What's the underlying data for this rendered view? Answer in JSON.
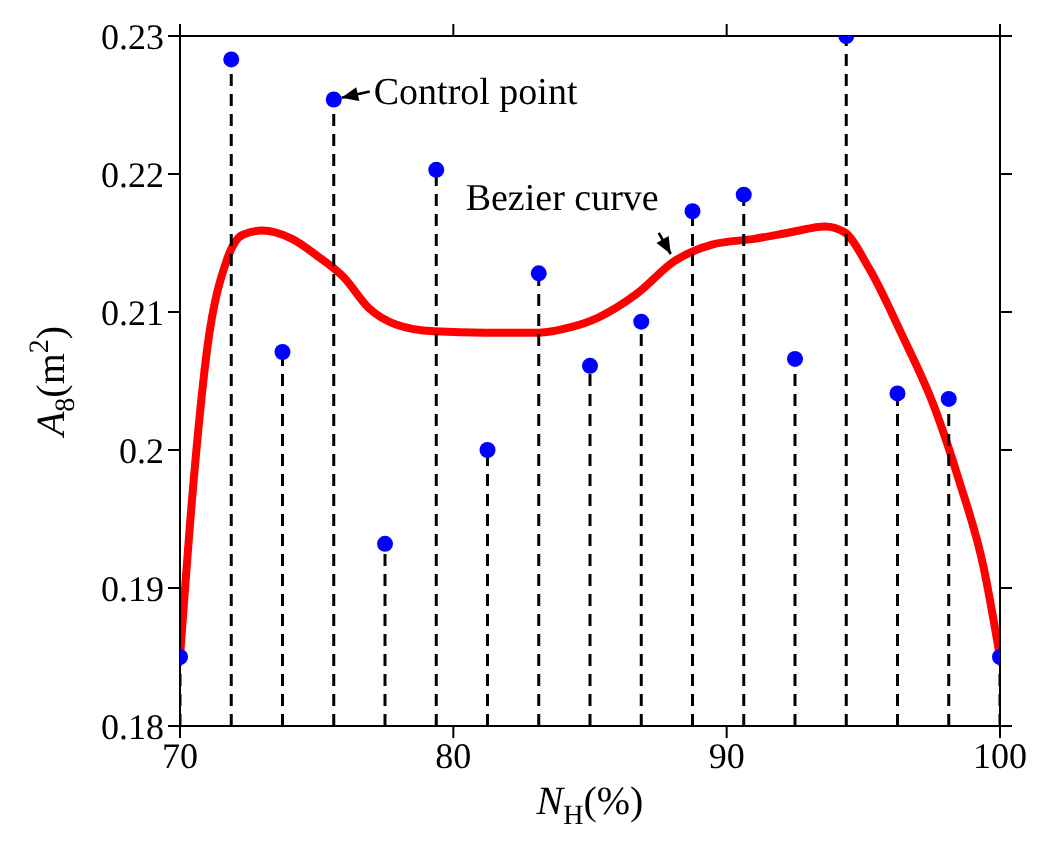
{
  "chart_data": {
    "type": "line",
    "xlabel": "N$_{H}$(%)",
    "ylabel": "A$_{8}$(m$^{2}$)",
    "xlim": [
      70,
      100
    ],
    "xticks": [
      70,
      80,
      90,
      100
    ],
    "ylim": [
      0.18,
      0.23
    ],
    "yticks": [
      0.18,
      0.19,
      0.2,
      0.21,
      0.22,
      0.23
    ],
    "series": [
      {
        "color": "#ff0000",
        "marker": "none",
        "line_style": "solid",
        "x": [
          70,
          70.5,
          71,
          71.7,
          72.3,
          73,
          74.1,
          75,
          76,
          76.9,
          77.9,
          79.3,
          81.2,
          83.1,
          84.3,
          85.3,
          86.7,
          88.1,
          89.5,
          91,
          92.4,
          93.6,
          94.3,
          95.2,
          96.4,
          97.6,
          98.5,
          99.4,
          100
        ],
        "values": [
          0.185,
          0.1978,
          0.2074,
          0.2137,
          0.2156,
          0.2159,
          0.2153,
          0.2141,
          0.2125,
          0.2103,
          0.2091,
          0.2086,
          0.2085,
          0.2085,
          0.2089,
          0.2096,
          0.2113,
          0.2137,
          0.2149,
          0.2153,
          0.2158,
          0.2162,
          0.2158,
          0.2132,
          0.2084,
          0.2031,
          0.1978,
          0.1915,
          0.185
        ]
      },
      {
        "type": "lollipop",
        "color": "#0000ff",
        "marker": "circle",
        "line_style": "dashed",
        "x": [
          70,
          71.875,
          73.75,
          75.625,
          77.5,
          79.375,
          81.25,
          83.125,
          85,
          86.875,
          88.75,
          90.625,
          92.5,
          94.375,
          96.25,
          98.125,
          100
        ],
        "values": [
          0.185,
          0.2283,
          0.2071,
          0.2254,
          0.1932,
          0.2203,
          0.2,
          0.2128,
          0.2061,
          0.2093,
          0.2173,
          0.2185,
          0.2066,
          0.23,
          0.2041,
          0.2037,
          0.185
        ]
      }
    ],
    "annotations": [
      {
        "text": "Control point",
        "x": 75.625,
        "y": 0.2254
      },
      {
        "text": "Bezier curve",
        "x": 88.1,
        "y": 0.2137
      }
    ]
  }
}
